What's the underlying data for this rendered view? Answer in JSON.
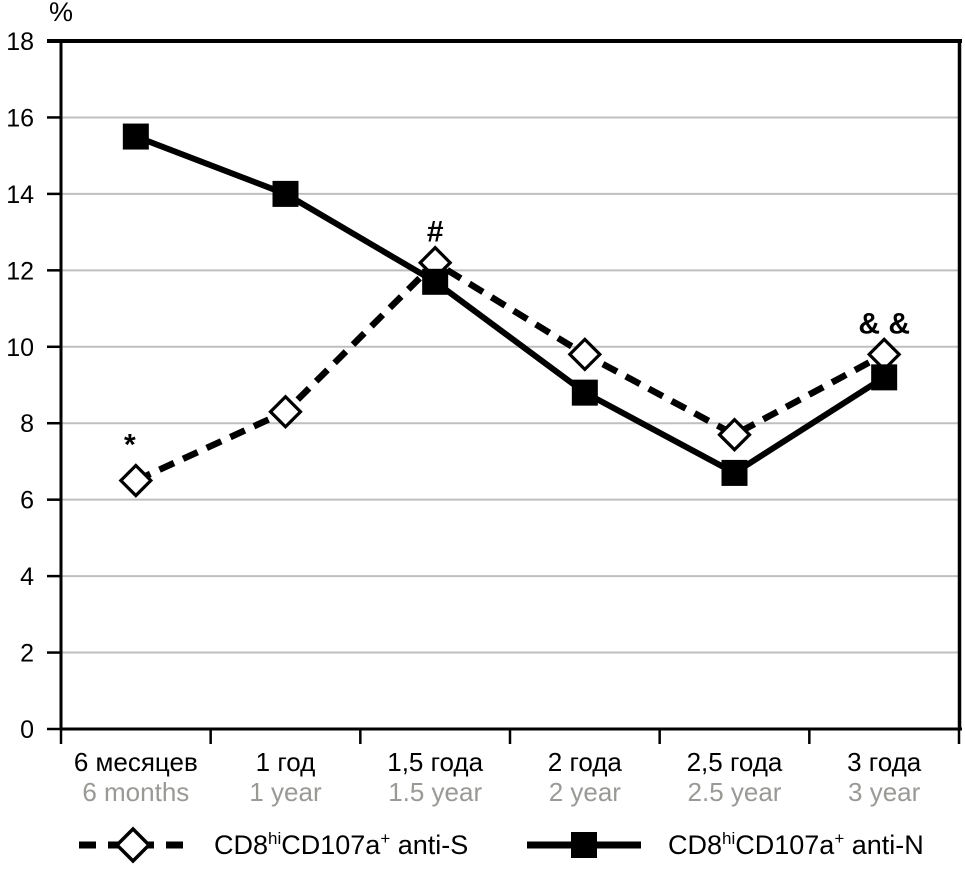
{
  "chart_data": {
    "type": "line",
    "title": "",
    "y_axis_unit": "%",
    "ylim": [
      0,
      18
    ],
    "ytick_step": 2,
    "grid": true,
    "legend_position": "bottom",
    "categories": [
      {
        "ru": "6 месяцев",
        "en": "6 months"
      },
      {
        "ru": "1 год",
        "en": "1 year"
      },
      {
        "ru": "1,5 года",
        "en": "1.5 year"
      },
      {
        "ru": "2 года",
        "en": "2 year"
      },
      {
        "ru": "2,5 года",
        "en": "2.5 year"
      },
      {
        "ru": "3 года",
        "en": "3 year"
      }
    ],
    "series": [
      {
        "name": "CD8hiCD107a+ anti-S",
        "line_style": "dashed",
        "marker": "open-diamond",
        "color": "#000000",
        "values": [
          6.5,
          8.3,
          12.2,
          9.8,
          7.7,
          9.8
        ]
      },
      {
        "name": "CD8hiCD107a+ anti-N",
        "line_style": "solid",
        "marker": "filled-square",
        "color": "#000000",
        "values": [
          15.5,
          14.0,
          11.7,
          8.8,
          6.7,
          9.2
        ]
      }
    ],
    "annotations": [
      {
        "text": "*",
        "series_index": 0,
        "point_index": 0
      },
      {
        "text": "#",
        "series_index": 0,
        "point_index": 2
      },
      {
        "text": "& &",
        "series_index": 0,
        "point_index": 5
      }
    ],
    "colors": {
      "line": "#000000",
      "gridline": "#bfbfbf",
      "secondary_label": "#999996"
    }
  },
  "legend": {
    "items": [
      {
        "base1": "CD8",
        "sup1": "hi",
        "base2": "CD107a",
        "sup2": "+",
        "suffix": " anti-S"
      },
      {
        "base1": "CD8",
        "sup1": "hi",
        "base2": "CD107a",
        "sup2": "+",
        "suffix": " anti-N"
      }
    ]
  }
}
